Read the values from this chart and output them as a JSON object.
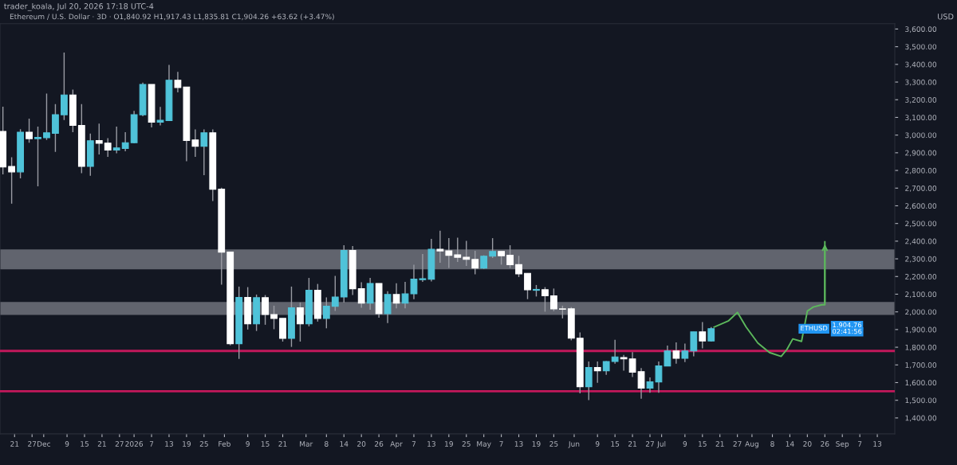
{
  "chart_data": {
    "type": "candlestick",
    "title": "Ethereum / U.S. Dollar · 3D · O1,840.92 H1,917.43 L1,835.81 C1,904.26 +63.62 (+3.47%)",
    "subtitle": "trader_koala, Jul 20, 2026 17:18 UTC-4",
    "ylabel": "USD",
    "annotations": [
      "ETHUSD",
      "1,904.76",
      "02:41:56"
    ],
    "x": [
      "2025-11-17",
      "2025-11-20",
      "2025-11-23",
      "2025-11-26",
      "2025-11-29",
      "2025-12-02",
      "2025-12-05",
      "2025-12-08",
      "2025-12-11",
      "2025-12-14",
      "2025-12-17",
      "2025-12-20",
      "2025-12-23",
      "2025-12-26",
      "2025-12-29",
      "2026-01-01",
      "2026-01-04",
      "2026-01-07",
      "2026-01-10",
      "2026-01-13",
      "2026-01-16",
      "2026-01-19",
      "2026-01-22",
      "2026-01-25",
      "2026-01-28",
      "2026-01-31",
      "2026-02-03",
      "2026-02-06",
      "2026-02-09",
      "2026-02-12",
      "2026-02-15",
      "2026-02-18",
      "2026-02-21",
      "2026-02-24",
      "2026-02-27",
      "2026-03-02",
      "2026-03-05",
      "2026-03-08",
      "2026-03-11",
      "2026-03-14",
      "2026-03-17",
      "2026-03-20",
      "2026-03-23",
      "2026-03-26",
      "2026-03-29",
      "2026-04-01",
      "2026-04-04",
      "2026-04-07",
      "2026-04-10",
      "2026-04-13",
      "2026-04-16",
      "2026-04-19",
      "2026-04-22",
      "2026-04-25",
      "2026-04-28",
      "2026-05-01",
      "2026-05-04",
      "2026-05-07",
      "2026-05-10",
      "2026-05-13",
      "2026-05-16",
      "2026-05-19",
      "2026-05-22",
      "2026-05-25",
      "2026-05-28",
      "2026-05-31",
      "2026-06-03",
      "2026-06-06",
      "2026-06-09",
      "2026-06-12",
      "2026-06-15",
      "2026-06-18",
      "2026-06-21",
      "2026-06-24",
      "2026-06-27",
      "2026-06-30",
      "2026-07-03",
      "2026-07-06",
      "2026-07-09",
      "2026-07-12",
      "2026-07-15",
      "2026-07-18"
    ],
    "ohlc": [
      [
        3021,
        3161,
        2778,
        2820
      ],
      [
        2823,
        2875,
        2612,
        2792
      ],
      [
        2792,
        3033,
        2755,
        3016
      ],
      [
        3016,
        3093,
        2957,
        2980
      ],
      [
        2980,
        3048,
        2710,
        2987
      ],
      [
        2985,
        3235,
        2972,
        3013
      ],
      [
        3010,
        3175,
        2905,
        3115
      ],
      [
        3115,
        3467,
        3085,
        3227
      ],
      [
        3227,
        3257,
        3017,
        3055
      ],
      [
        3055,
        3175,
        2784,
        2823
      ],
      [
        2823,
        3009,
        2770,
        2968
      ],
      [
        2969,
        3065,
        2890,
        2954
      ],
      [
        2954,
        2983,
        2877,
        2915
      ],
      [
        2915,
        3048,
        2897,
        2927
      ],
      [
        2924,
        3017,
        2908,
        2957
      ],
      [
        2957,
        3137,
        2953,
        3115
      ],
      [
        3115,
        3297,
        3107,
        3287
      ],
      [
        3287,
        3287,
        3043,
        3073
      ],
      [
        3073,
        3160,
        3055,
        3084
      ],
      [
        3082,
        3397,
        3080,
        3310
      ],
      [
        3310,
        3358,
        3242,
        3269
      ],
      [
        3272,
        3272,
        2852,
        2969
      ],
      [
        2972,
        3032,
        2877,
        2937
      ],
      [
        2937,
        3032,
        2773,
        3013
      ],
      [
        3013,
        3032,
        2627,
        2694
      ],
      [
        2694,
        2702,
        2154,
        2338
      ],
      [
        2338,
        2338,
        1811,
        1820
      ],
      [
        1820,
        2143,
        1734,
        2082
      ],
      [
        2082,
        2140,
        1900,
        1932
      ],
      [
        1932,
        2098,
        1892,
        2080
      ],
      [
        2080,
        2095,
        1927,
        1985
      ],
      [
        1985,
        2035,
        1902,
        1963
      ],
      [
        1963,
        1963,
        1832,
        1850
      ],
      [
        1850,
        2143,
        1802,
        2023
      ],
      [
        2023,
        2053,
        1832,
        1932
      ],
      [
        1932,
        2192,
        1918,
        2122
      ],
      [
        2122,
        2158,
        1945,
        1963
      ],
      [
        1963,
        2082,
        1907,
        2032
      ],
      [
        2032,
        2203,
        2005,
        2084
      ],
      [
        2084,
        2377,
        2053,
        2347
      ],
      [
        2347,
        2372,
        2095,
        2131
      ],
      [
        2131,
        2167,
        2023,
        2050
      ],
      [
        2050,
        2192,
        2012,
        2161
      ],
      [
        2161,
        2161,
        1967,
        1990
      ],
      [
        1990,
        2117,
        1937,
        2098
      ],
      [
        2098,
        2162,
        2020,
        2050
      ],
      [
        2050,
        2170,
        2020,
        2102
      ],
      [
        2102,
        2267,
        2072,
        2185
      ],
      [
        2182,
        2327,
        2170,
        2188
      ],
      [
        2185,
        2413,
        2172,
        2354
      ],
      [
        2354,
        2459,
        2278,
        2345
      ],
      [
        2345,
        2417,
        2248,
        2320
      ],
      [
        2323,
        2420,
        2282,
        2309
      ],
      [
        2309,
        2402,
        2260,
        2297
      ],
      [
        2297,
        2345,
        2212,
        2248
      ],
      [
        2248,
        2320,
        2243,
        2315
      ],
      [
        2315,
        2417,
        2305,
        2342
      ],
      [
        2342,
        2342,
        2267,
        2317
      ],
      [
        2320,
        2377,
        2248,
        2267
      ],
      [
        2267,
        2317,
        2197,
        2215
      ],
      [
        2218,
        2218,
        2072,
        2125
      ],
      [
        2122,
        2152,
        2087,
        2127
      ],
      [
        2125,
        2140,
        2001,
        2091
      ],
      [
        2091,
        2132,
        2004,
        2017
      ],
      [
        2017,
        2035,
        1963,
        2015
      ],
      [
        2017,
        2027,
        1839,
        1851
      ],
      [
        1851,
        1884,
        1539,
        1577
      ],
      [
        1577,
        1719,
        1501,
        1685
      ],
      [
        1685,
        1719,
        1599,
        1667
      ],
      [
        1667,
        1722,
        1644,
        1719
      ],
      [
        1719,
        1842,
        1707,
        1745
      ],
      [
        1742,
        1757,
        1667,
        1734
      ],
      [
        1734,
        1772,
        1632,
        1659
      ],
      [
        1662,
        1682,
        1509,
        1569
      ],
      [
        1569,
        1629,
        1542,
        1604
      ],
      [
        1604,
        1719,
        1542,
        1694
      ],
      [
        1694,
        1809,
        1692,
        1779
      ],
      [
        1779,
        1827,
        1707,
        1737
      ],
      [
        1737,
        1821,
        1716,
        1779
      ],
      [
        1779,
        1887,
        1749,
        1887
      ],
      [
        1887,
        1942,
        1794,
        1835
      ],
      [
        1835,
        1914,
        1832,
        1905
      ]
    ],
    "colors": [
      "#ffffff",
      "#ffffff",
      "#4fc3d9",
      "#ffffff",
      "#4fc3d9",
      "#4fc3d9",
      "#4fc3d9",
      "#4fc3d9",
      "#ffffff",
      "#ffffff",
      "#4fc3d9",
      "#ffffff",
      "#ffffff",
      "#4fc3d9",
      "#4fc3d9",
      "#4fc3d9",
      "#4fc3d9",
      "#ffffff",
      "#4fc3d9",
      "#4fc3d9",
      "#ffffff",
      "#ffffff",
      "#ffffff",
      "#4fc3d9",
      "#ffffff",
      "#ffffff",
      "#ffffff",
      "#4fc3d9",
      "#ffffff",
      "#4fc3d9",
      "#ffffff",
      "#ffffff",
      "#ffffff",
      "#4fc3d9",
      "#ffffff",
      "#4fc3d9",
      "#ffffff",
      "#4fc3d9",
      "#4fc3d9",
      "#4fc3d9",
      "#ffffff",
      "#ffffff",
      "#4fc3d9",
      "#ffffff",
      "#4fc3d9",
      "#ffffff",
      "#4fc3d9",
      "#4fc3d9",
      "#4fc3d9",
      "#4fc3d9",
      "#ffffff",
      "#ffffff",
      "#ffffff",
      "#ffffff",
      "#ffffff",
      "#4fc3d9",
      "#4fc3d9",
      "#ffffff",
      "#ffffff",
      "#ffffff",
      "#ffffff",
      "#4fc3d9",
      "#ffffff",
      "#ffffff",
      "#ffffff",
      "#ffffff",
      "#ffffff",
      "#4fc3d9",
      "#ffffff",
      "#4fc3d9",
      "#4fc3d9",
      "#ffffff",
      "#ffffff",
      "#ffffff",
      "#4fc3d9",
      "#4fc3d9",
      "#4fc3d9",
      "#ffffff",
      "#4fc3d9",
      "#4fc3d9",
      "#ffffff",
      "#4fc3d9"
    ],
    "series": [
      {
        "type": "line",
        "color": "#5cb85c",
        "x": [
          "2026-07-19",
          "2026-07-24",
          "2026-07-27",
          "2026-07-30",
          "2026-08-03",
          "2026-08-07",
          "2026-08-11",
          "2026-08-13",
          "2026-08-15",
          "2026-08-18",
          "2026-08-20",
          "2026-08-22",
          "2026-08-25",
          "2026-08-26",
          "2026-08-26"
        ],
        "values": [
          1914,
          1950,
          1997,
          1914,
          1824,
          1770,
          1748,
          1788,
          1847,
          1833,
          2005,
          2027,
          2040,
          2040,
          2396
        ]
      }
    ],
    "bands": [
      {
        "axis": "y",
        "from": 1986,
        "to": 2053,
        "label": null,
        "color": "#9598a1"
      },
      {
        "axis": "y",
        "from": 2244,
        "to": 2350,
        "label": null,
        "color": "#9598a1"
      }
    ],
    "ref_lines": [
      {
        "axis": "y",
        "value": 1779,
        "label": null,
        "color": "#c2185b"
      },
      {
        "axis": "y",
        "value": 1551,
        "label": null,
        "color": "#c2185b"
      }
    ],
    "xlim": [
      "2025-11-16",
      "2026-09-19"
    ],
    "xticks": [
      {
        "value": "2025-11-21",
        "label": "21"
      },
      {
        "value": "2025-11-27",
        "label": "27"
      },
      {
        "value": "2025-12-01",
        "label": "Dec"
      },
      {
        "value": "2025-12-09",
        "label": "9"
      },
      {
        "value": "2025-12-15",
        "label": "15"
      },
      {
        "value": "2025-12-21",
        "label": "21"
      },
      {
        "value": "2025-12-27",
        "label": "27"
      },
      {
        "value": "2026-01-01",
        "label": "2026"
      },
      {
        "value": "2026-01-07",
        "label": "7"
      },
      {
        "value": "2026-01-13",
        "label": "13"
      },
      {
        "value": "2026-01-19",
        "label": "19"
      },
      {
        "value": "2026-01-25",
        "label": "25"
      },
      {
        "value": "2026-02-01",
        "label": "Feb"
      },
      {
        "value": "2026-02-09",
        "label": "9"
      },
      {
        "value": "2026-02-15",
        "label": "15"
      },
      {
        "value": "2026-02-21",
        "label": "21"
      },
      {
        "value": "2026-03-01",
        "label": "Mar"
      },
      {
        "value": "2026-03-08",
        "label": "8"
      },
      {
        "value": "2026-03-14",
        "label": "14"
      },
      {
        "value": "2026-03-20",
        "label": "20"
      },
      {
        "value": "2026-03-26",
        "label": "26"
      },
      {
        "value": "2026-04-01",
        "label": "Apr"
      },
      {
        "value": "2026-04-07",
        "label": "7"
      },
      {
        "value": "2026-04-13",
        "label": "13"
      },
      {
        "value": "2026-04-19",
        "label": "19"
      },
      {
        "value": "2026-04-25",
        "label": "25"
      },
      {
        "value": "2026-05-01",
        "label": "May"
      },
      {
        "value": "2026-05-07",
        "label": "7"
      },
      {
        "value": "2026-05-13",
        "label": "13"
      },
      {
        "value": "2026-05-19",
        "label": "19"
      },
      {
        "value": "2026-05-25",
        "label": "25"
      },
      {
        "value": "2026-06-01",
        "label": "Jun"
      },
      {
        "value": "2026-06-09",
        "label": "9"
      },
      {
        "value": "2026-06-15",
        "label": "15"
      },
      {
        "value": "2026-06-21",
        "label": "21"
      },
      {
        "value": "2026-06-27",
        "label": "27"
      },
      {
        "value": "2026-07-01",
        "label": "Jul"
      },
      {
        "value": "2026-07-09",
        "label": "9"
      },
      {
        "value": "2026-07-15",
        "label": "15"
      },
      {
        "value": "2026-07-21",
        "label": "21"
      },
      {
        "value": "2026-07-27",
        "label": "27"
      },
      {
        "value": "2026-08-01",
        "label": "Aug"
      },
      {
        "value": "2026-08-08",
        "label": "8"
      },
      {
        "value": "2026-08-14",
        "label": "14"
      },
      {
        "value": "2026-08-20",
        "label": "20"
      },
      {
        "value": "2026-08-26",
        "label": "26"
      },
      {
        "value": "2026-09-01",
        "label": "Sep"
      },
      {
        "value": "2026-09-07",
        "label": "7"
      },
      {
        "value": "2026-09-13",
        "label": "13"
      }
    ],
    "ylim": [
      1310,
      3630
    ],
    "yticks": [
      {
        "value": 1400,
        "label": "1,400.00"
      },
      {
        "value": 1500,
        "label": "1,500.00"
      },
      {
        "value": 1600,
        "label": "1,600.00"
      },
      {
        "value": 1700,
        "label": "1,700.00"
      },
      {
        "value": 1800,
        "label": "1,800.00"
      },
      {
        "value": 1900,
        "label": "1,900.00"
      },
      {
        "value": 2000,
        "label": "2,000.00"
      },
      {
        "value": 2100,
        "label": "2,100.00"
      },
      {
        "value": 2200,
        "label": "2,200.00"
      },
      {
        "value": 2300,
        "label": "2,300.00"
      },
      {
        "value": 2400,
        "label": "2,400.00"
      },
      {
        "value": 2500,
        "label": "2,500.00"
      },
      {
        "value": 2600,
        "label": "2,600.00"
      },
      {
        "value": 2700,
        "label": "2,700.00"
      },
      {
        "value": 2800,
        "label": "2,800.00"
      },
      {
        "value": 2900,
        "label": "2,900.00"
      },
      {
        "value": 3000,
        "label": "3,000.00"
      },
      {
        "value": 3100,
        "label": "3,100.00"
      },
      {
        "value": 3200,
        "label": "3,200.00"
      },
      {
        "value": 3300,
        "label": "3,300.00"
      },
      {
        "value": 3400,
        "label": "3,400.00"
      },
      {
        "value": 3500,
        "label": "3,500.00"
      },
      {
        "value": 3600,
        "label": "3,600.00"
      }
    ],
    "legend": false
  }
}
